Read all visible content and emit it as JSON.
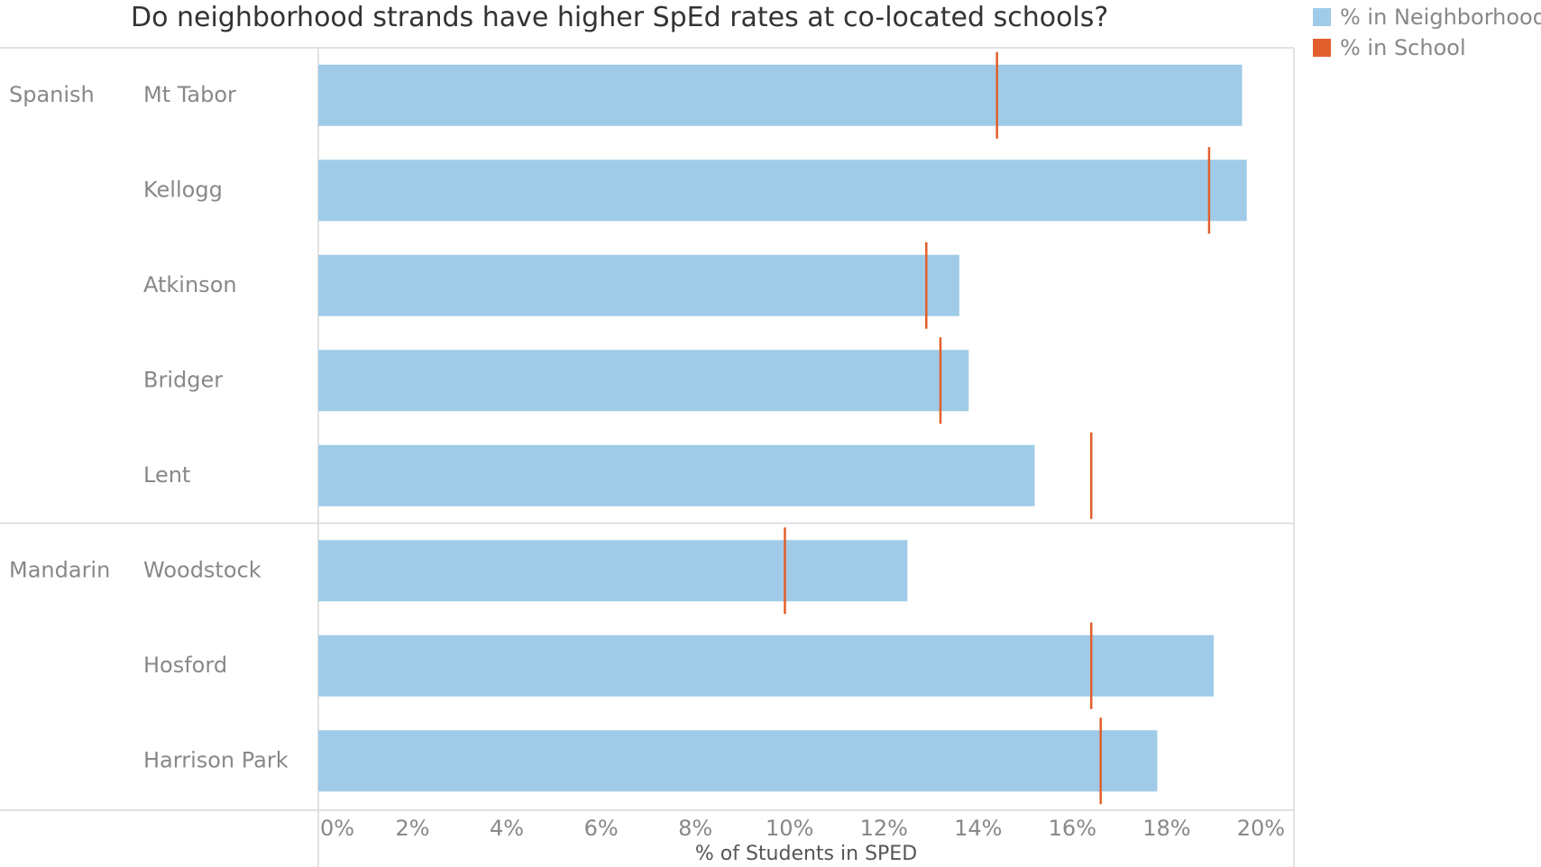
{
  "title": "Do neighborhood strands have higher SpEd rates at co-located schools?",
  "legend": [
    {
      "label": "% in Neighborhood",
      "color": "#a0cbe8"
    },
    {
      "label": "% in School",
      "color": "#e15f2a"
    }
  ],
  "chart_data": {
    "type": "bar",
    "orientation": "horizontal",
    "title": "Do neighborhood strands have higher SpEd rates at co-located schools?",
    "xlabel": "% of Students in SPED",
    "xlim": [
      0,
      20.7
    ],
    "x_ticks": [
      "0%",
      "2%",
      "4%",
      "6%",
      "8%",
      "10%",
      "12%",
      "14%",
      "16%",
      "18%",
      "20%"
    ],
    "grid": false,
    "legend_position": "top-right",
    "groups": [
      {
        "name": "Spanish",
        "categories": [
          "Mt Tabor",
          "Kellogg",
          "Atkinson",
          "Bridger",
          "Lent"
        ]
      },
      {
        "name": "Mandarin",
        "categories": [
          "Woodstock",
          "Hosford",
          "Harrison Park"
        ]
      }
    ],
    "categories": [
      "Mt Tabor",
      "Kellogg",
      "Atkinson",
      "Bridger",
      "Lent",
      "Woodstock",
      "Hosford",
      "Harrison Park"
    ],
    "series": [
      {
        "name": "% in Neighborhood",
        "mark": "bar",
        "color": "#a0cbe8",
        "values": [
          19.6,
          19.7,
          13.6,
          13.8,
          15.2,
          12.5,
          19.0,
          17.8
        ]
      },
      {
        "name": "% in School",
        "mark": "reference-line",
        "color": "#e15f2a",
        "values": [
          14.4,
          18.9,
          12.9,
          13.2,
          16.4,
          9.9,
          16.4,
          16.6
        ]
      }
    ]
  }
}
